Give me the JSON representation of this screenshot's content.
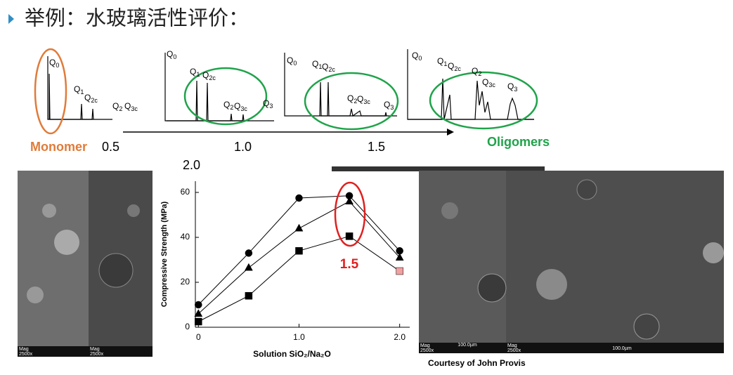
{
  "title": "举例：水玻璃活性评价：",
  "spectra": [
    {
      "labels": [
        {
          "base": "Q",
          "sub": "0"
        },
        {
          "base": "Q",
          "sub": "1"
        },
        {
          "base": "Q",
          "sub": "2c"
        },
        {
          "base": "Q",
          "sub": "2"
        },
        {
          "base": "Q",
          "sub": "3c"
        }
      ]
    },
    {
      "labels": [
        {
          "base": "Q",
          "sub": "0"
        },
        {
          "base": "Q",
          "sub": "1"
        },
        {
          "base": "Q",
          "sub": "2c"
        },
        {
          "base": "Q",
          "sub": "2"
        },
        {
          "base": "Q",
          "sub": "3c"
        },
        {
          "base": "Q",
          "sub": "3"
        }
      ]
    },
    {
      "labels": [
        {
          "base": "Q",
          "sub": "0"
        },
        {
          "base": "Q",
          "sub": "1"
        },
        {
          "base": "Q",
          "sub": "2c"
        },
        {
          "base": "Q",
          "sub": "2"
        },
        {
          "base": "Q",
          "sub": "3c"
        },
        {
          "base": "Q",
          "sub": "3"
        }
      ]
    },
    {
      "labels": [
        {
          "base": "Q",
          "sub": "0"
        },
        {
          "base": "Q",
          "sub": "1"
        },
        {
          "base": "Q",
          "sub": "2c"
        },
        {
          "base": "Q",
          "sub": "2"
        },
        {
          "base": "Q",
          "sub": "3c"
        },
        {
          "base": "Q",
          "sub": "3"
        }
      ]
    }
  ],
  "ratios": [
    "0.5",
    "1.0",
    "1.5",
    "2.0"
  ],
  "monomer": "Monomer",
  "oligomers": "Oligomers",
  "images": {
    "mag_label": "Mag",
    "mag_value": "2500x",
    "scale_bar": "100.0µm",
    "credit": "Courtesy of John Provis"
  },
  "chart_data": {
    "type": "line",
    "x_label": "Solution SiO₂/Na₂O",
    "y_label": "Compressive Strength (MPa)",
    "annotation": "1.5",
    "x": [
      0,
      0.5,
      1.0,
      1.5,
      2.0
    ],
    "series": [
      {
        "marker": "circle",
        "color": "#000000",
        "values": [
          10,
          33,
          57.5,
          58.5,
          34
        ]
      },
      {
        "marker": "triangle",
        "color": "#000000",
        "values": [
          6,
          26.5,
          44,
          56,
          31
        ]
      },
      {
        "marker": "square",
        "color": "#000000",
        "point_colors": [
          "#000000",
          "#000000",
          "#000000",
          "#000000",
          "#f2a0a0"
        ],
        "values": [
          2.5,
          14,
          34,
          40.5,
          25
        ]
      }
    ],
    "xlim": [
      -0.03,
      2.1
    ],
    "xticks": [
      0,
      {
        "value": 1,
        "label": "1.0"
      },
      {
        "value": 2,
        "label": "2.0"
      }
    ],
    "ylim": [
      0,
      65
    ],
    "yticks": [
      0,
      20,
      40,
      60
    ]
  }
}
